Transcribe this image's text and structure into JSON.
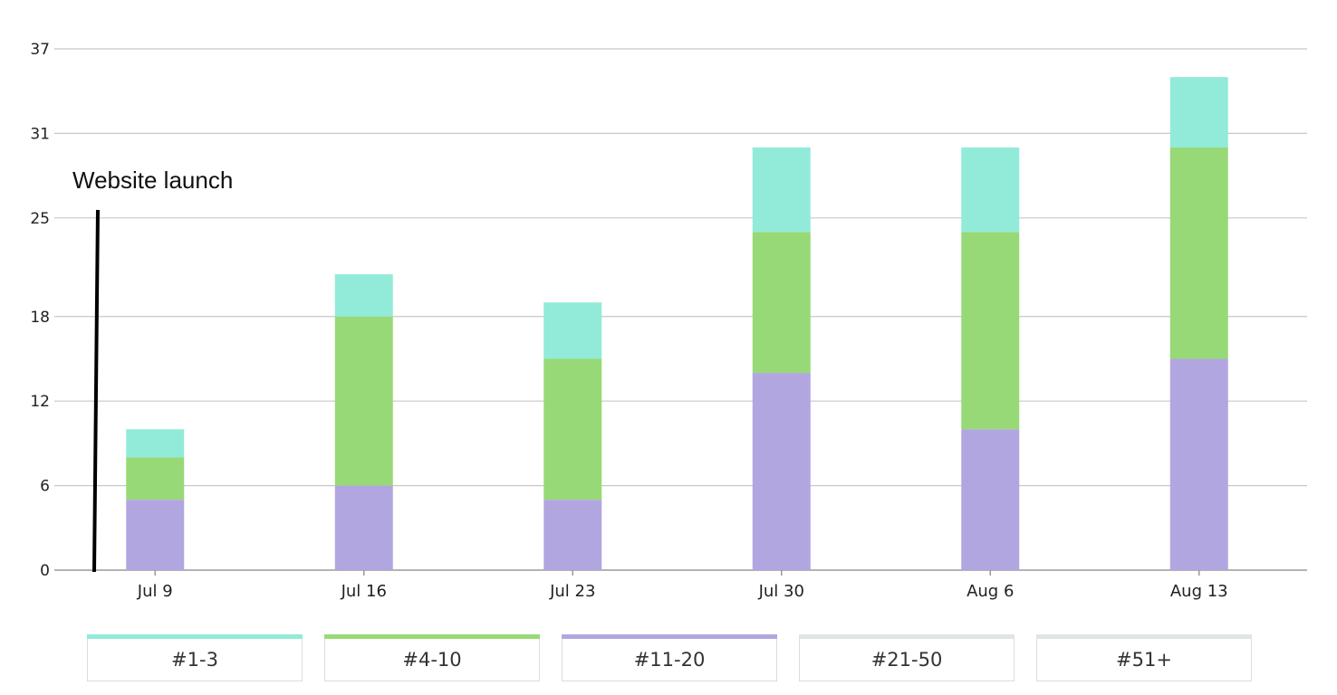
{
  "chart_data": {
    "type": "bar",
    "stacked": true,
    "categories": [
      "Jul 9",
      "Jul 16",
      "Jul 23",
      "Jul 30",
      "Aug 6",
      "Aug 13"
    ],
    "series": [
      {
        "name": "#11-20",
        "color": "#b2a6e0",
        "values": [
          5,
          6,
          5,
          14,
          10,
          15
        ]
      },
      {
        "name": "#4-10",
        "color": "#98d977",
        "values": [
          3,
          12,
          10,
          10,
          14,
          15
        ]
      },
      {
        "name": "#1-3",
        "color": "#91ebd8",
        "values": [
          2,
          3,
          4,
          6,
          6,
          5
        ]
      }
    ],
    "yticks": [
      0,
      6,
      12,
      18,
      25,
      31,
      37
    ],
    "ylim": [
      0,
      37
    ],
    "grid": true,
    "annotation": {
      "text": "Website launch",
      "x": "Jul 9"
    }
  },
  "legend": {
    "items": [
      {
        "label": "#1-3",
        "color": "#91ebd8"
      },
      {
        "label": "#4-10",
        "color": "#98d977"
      },
      {
        "label": "#11-20",
        "color": "#b2a6e0"
      },
      {
        "label": "#21-50",
        "color": "#dfe5e3"
      },
      {
        "label": "#51+",
        "color": "#dfe5e3"
      }
    ]
  }
}
